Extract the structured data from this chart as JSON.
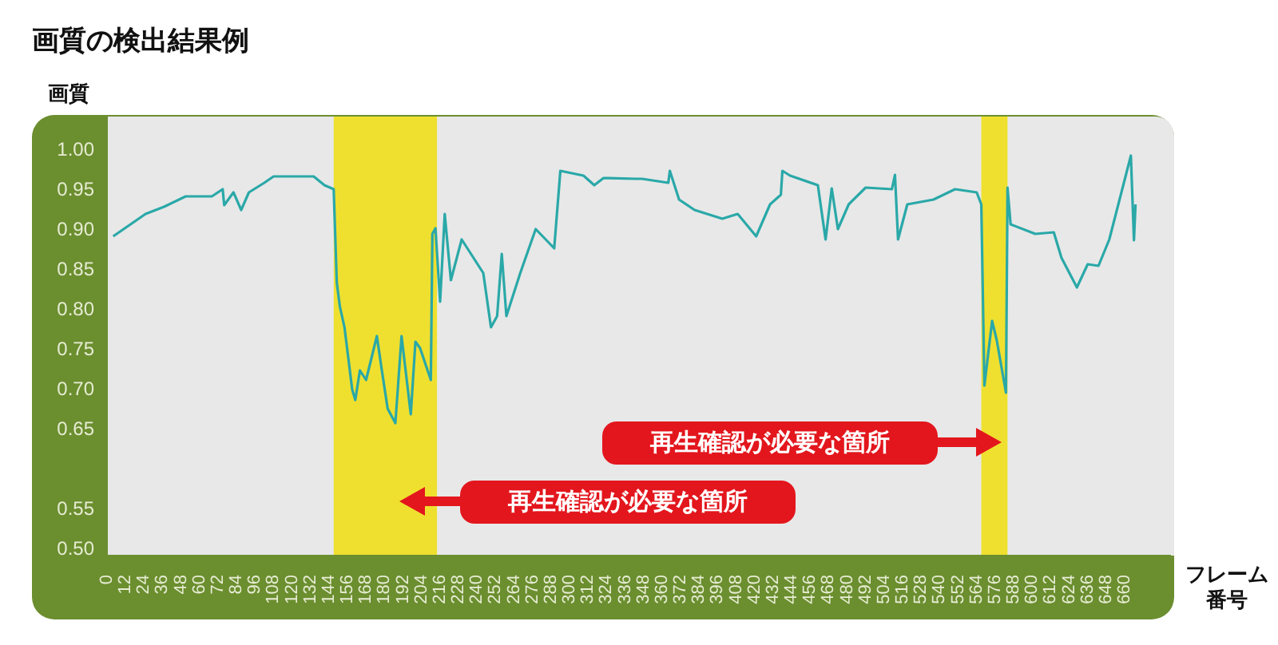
{
  "chart_data": {
    "type": "line",
    "title": "画質の検出結果例",
    "ylabel": "画質",
    "xlabel": "フレーム番号",
    "annotations": [
      "再生確認が必要な箇所",
      "再生確認が必要な箇所"
    ],
    "x": [
      4,
      25,
      37,
      51,
      68,
      75,
      76,
      82,
      87,
      92,
      102,
      108,
      134,
      141,
      147,
      149,
      151,
      154,
      159,
      161,
      164,
      168,
      175,
      178,
      182,
      187,
      191,
      197,
      200,
      203,
      210,
      211,
      213,
      216,
      219,
      223,
      230,
      237,
      244,
      249,
      253,
      256,
      259,
      268,
      278,
      290,
      294,
      309,
      316,
      322,
      343,
      347,
      364,
      365,
      371,
      381,
      399,
      409,
      421,
      430,
      437,
      438,
      443,
      461,
      466,
      470,
      474,
      481,
      492,
      509,
      511,
      513,
      519,
      536,
      550,
      564,
      567,
      569,
      574,
      577,
      583,
      584,
      586,
      602,
      614,
      619,
      629,
      636,
      643,
      650,
      664,
      666,
      667
    ],
    "series": [
      {
        "color": "#2aa8a8",
        "values": [
          0.89,
          0.918,
          0.927,
          0.94,
          0.94,
          0.949,
          0.929,
          0.945,
          0.923,
          0.945,
          0.957,
          0.965,
          0.965,
          0.954,
          0.949,
          0.832,
          0.802,
          0.776,
          0.698,
          0.685,
          0.722,
          0.71,
          0.765,
          0.725,
          0.674,
          0.656,
          0.765,
          0.667,
          0.758,
          0.75,
          0.71,
          0.893,
          0.9,
          0.808,
          0.918,
          0.835,
          0.886,
          0.865,
          0.844,
          0.776,
          0.79,
          0.868,
          0.79,
          0.844,
          0.899,
          0.875,
          0.972,
          0.966,
          0.954,
          0.963,
          0.962,
          0.962,
          0.957,
          0.972,
          0.936,
          0.923,
          0.912,
          0.918,
          0.89,
          0.93,
          0.942,
          0.972,
          0.966,
          0.954,
          0.886,
          0.95,
          0.899,
          0.93,
          0.951,
          0.949,
          0.967,
          0.886,
          0.93,
          0.936,
          0.949,
          0.945,
          0.93,
          0.703,
          0.784,
          0.76,
          0.694,
          0.951,
          0.905,
          0.893,
          0.895,
          0.863,
          0.826,
          0.855,
          0.853,
          0.886,
          0.991,
          0.885,
          0.93
        ]
      }
    ],
    "xlim": [
      0,
      690
    ],
    "ylim": [
      0.49,
      1.04
    ],
    "xticks": [
      0,
      12,
      24,
      36,
      48,
      60,
      72,
      84,
      96,
      108,
      120,
      132,
      144,
      156,
      168,
      180,
      192,
      204,
      216,
      228,
      240,
      252,
      264,
      276,
      288,
      300,
      312,
      324,
      336,
      348,
      360,
      372,
      384,
      396,
      408,
      420,
      432,
      444,
      456,
      468,
      480,
      492,
      504,
      516,
      528,
      540,
      552,
      564,
      576,
      588,
      600,
      612,
      624,
      636,
      648,
      660
    ],
    "yticks": [
      {
        "value": 1.0,
        "label": "1.00"
      },
      {
        "value": 0.95,
        "label": "0.95"
      },
      {
        "value": 0.9,
        "label": "0.90"
      },
      {
        "value": 0.85,
        "label": "0.85"
      },
      {
        "value": 0.8,
        "label": "0.80"
      },
      {
        "value": 0.75,
        "label": "0.75"
      },
      {
        "value": 0.7,
        "label": "0.70"
      },
      {
        "value": 0.65,
        "label": "0.65"
      },
      {
        "value": 0.55,
        "label": "0.55"
      },
      {
        "value": 0.5,
        "label": "0.50"
      }
    ],
    "bands": [
      {
        "axis": "x",
        "from": 147,
        "to": 214,
        "color": "#efe030"
      },
      {
        "axis": "x",
        "from": 567,
        "to": 584,
        "color": "#efe030"
      }
    ],
    "grid": false
  }
}
